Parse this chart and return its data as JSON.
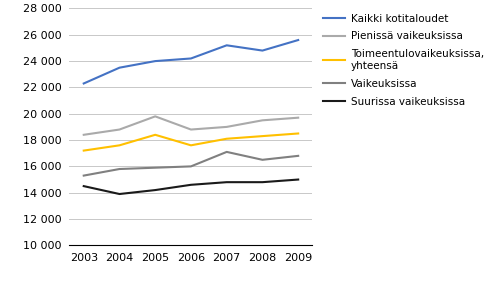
{
  "years": [
    2003,
    2004,
    2005,
    2006,
    2007,
    2008,
    2009
  ],
  "series": [
    {
      "label": "Kaikki kotitaloudet",
      "color": "#4472C4",
      "values": [
        22300,
        23500,
        24000,
        24200,
        25200,
        24800,
        25600
      ]
    },
    {
      "label": "Pienissä vaikeuksissa",
      "color": "#AAAAAA",
      "values": [
        18400,
        18800,
        19800,
        18800,
        19000,
        19500,
        19700
      ]
    },
    {
      "label": "Toimeentulovaikeuksissa,\nyhteensä",
      "color": "#FFC000",
      "values": [
        17200,
        17600,
        18400,
        17600,
        18100,
        18300,
        18500
      ]
    },
    {
      "label": "Vaikeuksissa",
      "color": "#808080",
      "values": [
        15300,
        15800,
        15900,
        16000,
        17100,
        16500,
        16800
      ]
    },
    {
      "label": "Suurissa vaikeuksissa",
      "color": "#1A1A1A",
      "values": [
        14500,
        13900,
        14200,
        14600,
        14800,
        14800,
        15000
      ]
    }
  ],
  "ylim": [
    10000,
    28000
  ],
  "yticks": [
    10000,
    12000,
    14000,
    16000,
    18000,
    20000,
    22000,
    24000,
    26000,
    28000
  ],
  "background_color": "#FFFFFF",
  "grid_color": "#C8C8C8",
  "figsize": [
    4.96,
    2.82
  ],
  "dpi": 100
}
